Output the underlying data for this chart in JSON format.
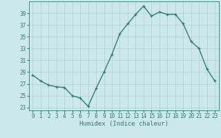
{
  "x": [
    0,
    1,
    2,
    3,
    4,
    5,
    6,
    7,
    8,
    9,
    10,
    11,
    12,
    13,
    14,
    15,
    16,
    17,
    18,
    19,
    20,
    21,
    22,
    23
  ],
  "y": [
    28.5,
    27.5,
    26.8,
    26.5,
    26.4,
    25.0,
    24.6,
    23.2,
    26.2,
    29.0,
    32.0,
    35.5,
    37.2,
    38.8,
    40.2,
    38.5,
    39.2,
    38.8,
    38.8,
    37.2,
    34.2,
    33.0,
    29.5,
    27.5
  ],
  "line_color": "#2e7d6e",
  "marker": "+",
  "markersize": 3.5,
  "linewidth": 1.0,
  "bg_color": "#cce8ec",
  "grid_color": "#b0cdd1",
  "xlabel": "Humidex (Indice chaleur)",
  "ylabel_ticks": [
    23,
    25,
    27,
    29,
    31,
    33,
    35,
    37,
    39
  ],
  "xticks": [
    0,
    1,
    2,
    3,
    4,
    5,
    6,
    7,
    8,
    9,
    10,
    11,
    12,
    13,
    14,
    15,
    16,
    17,
    18,
    19,
    20,
    21,
    22,
    23
  ],
  "ylim": [
    22.5,
    41.0
  ],
  "xlim": [
    -0.5,
    23.5
  ],
  "tick_fontsize": 5.5,
  "xlabel_fontsize": 6.5,
  "tick_color": "#2e7d6e",
  "label_color": "#2e7d6e",
  "spine_color": "#2e7d6e"
}
